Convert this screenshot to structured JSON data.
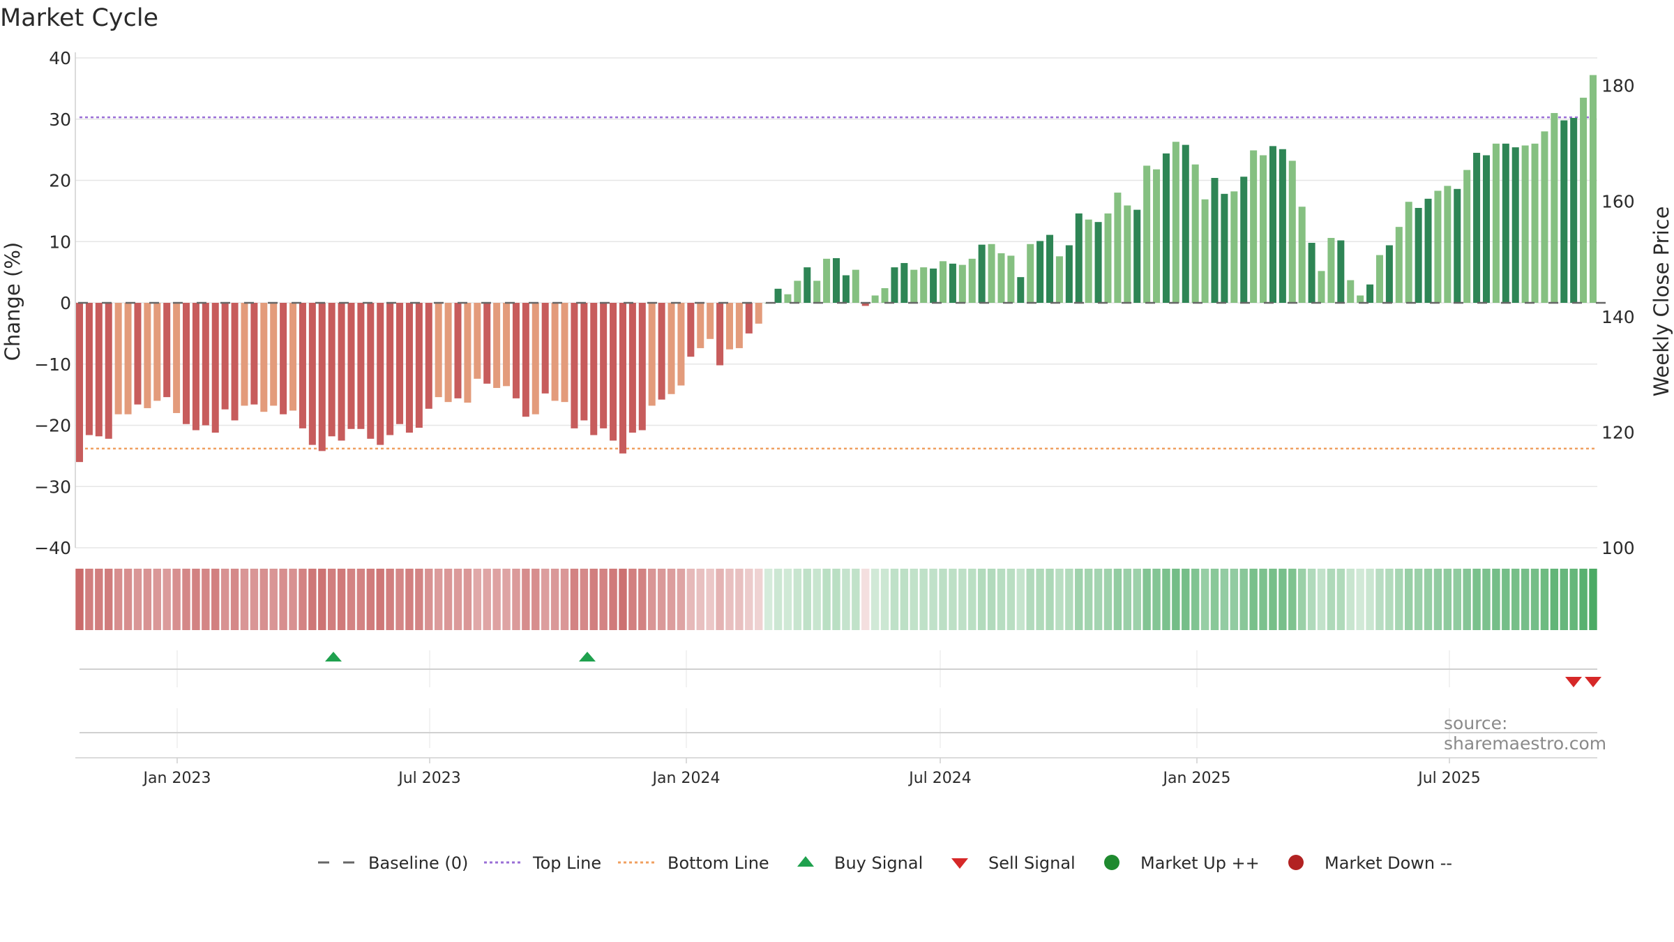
{
  "chart_data": {
    "type": "bar",
    "title": "Market Cycle",
    "ylabel_left": "Change (%)",
    "ylabel_right": "Weekly Close Price",
    "ylim": [
      -40,
      40
    ],
    "y_ticks": [
      -40,
      -30,
      -20,
      -10,
      0,
      10,
      20,
      30,
      40
    ],
    "y_tick_labels": [
      "−40",
      "−30",
      "−20",
      "−10",
      "0",
      "10",
      "20",
      "30",
      "40"
    ],
    "y2_ticks": [
      100,
      120,
      140,
      160,
      180
    ],
    "y2_tick_labels": [
      "100",
      "120",
      "140",
      "160",
      "180"
    ],
    "y2lim": [
      100,
      184.8
    ],
    "x_tick_labels": [
      "Jan 2023",
      "Jul 2023",
      "Jan 2024",
      "Jul 2024",
      "Jan 2025",
      "Jul 2025"
    ],
    "x_tick_dates": [
      "2023-01-01",
      "2023-07-01",
      "2024-01-01",
      "2024-07-01",
      "2025-01-01",
      "2025-07-01"
    ],
    "first_week": "2022-10-23",
    "last_week": "2025-10-12",
    "top_line": 30.3,
    "bottom_line": -23.8,
    "values": [
      -26,
      -21.6,
      -21.8,
      -22.2,
      -18.2,
      -18.2,
      -16.6,
      -17.2,
      -16,
      -15.4,
      -18,
      -19.8,
      -20.8,
      -20,
      -21.2,
      -17.4,
      -19.2,
      -16.8,
      -16.6,
      -17.8,
      -16.8,
      -18.2,
      -17.6,
      -20.5,
      -23.2,
      -24.2,
      -21.8,
      -22.5,
      -20.6,
      -20.6,
      -22.2,
      -23.2,
      -21.6,
      -19.8,
      -21.2,
      -20.4,
      -17.3,
      -15.4,
      -16.2,
      -15.6,
      -16.3,
      -12.4,
      -13.2,
      -13.9,
      -13.6,
      -15.6,
      -18.6,
      -18.2,
      -14.8,
      -16,
      -16.2,
      -20.5,
      -19.2,
      -21.6,
      -20.5,
      -22.5,
      -24.6,
      -21.2,
      -20.8,
      -16.8,
      -15.8,
      -14.9,
      -13.5,
      -8.8,
      -7.4,
      -5.9,
      -10.2,
      -7.6,
      -7.4,
      -5,
      -3.4,
      0,
      2.3,
      1.4,
      3.6,
      5.8,
      3.6,
      7.2,
      7.3,
      4.5,
      5.4,
      -0.5,
      1.2,
      2.4,
      5.8,
      6.5,
      5.4,
      5.8,
      5.6,
      6.8,
      6.4,
      6.2,
      7.2,
      9.5,
      9.6,
      8.1,
      7.7,
      4.2,
      9.6,
      10.1,
      11.1,
      7.6,
      9.4,
      14.6,
      13.6,
      13.2,
      14.6,
      18,
      15.9,
      15.2,
      22.4,
      21.8,
      24.4,
      26.3,
      25.8,
      22.6,
      16.9,
      20.4,
      17.8,
      18.2,
      20.6,
      24.9,
      24.1,
      25.6,
      25.1,
      23.2,
      15.7,
      9.8,
      5.2,
      10.6,
      10.2,
      3.7,
      1.2,
      3,
      7.8,
      9.4,
      12.4,
      16.5,
      15.5,
      17,
      18.3,
      19.1,
      18.6,
      21.7,
      24.5,
      24.1,
      26,
      26,
      25.4,
      25.7,
      26,
      28,
      31,
      29.8,
      30.2,
      33.5,
      37.2
    ],
    "buy_signals": [
      "2023-04-23",
      "2023-10-22"
    ],
    "sell_signals": [
      "2025-09-28",
      "2025-10-12"
    ],
    "legend": [
      "Baseline (0)",
      "Top Line",
      "Bottom Line",
      "Buy Signal",
      "Sell Signal",
      "Market Up ++",
      "Market Down --"
    ],
    "legend_position": "bottom-center",
    "grid": true,
    "colors": {
      "down_dark": "#c75c5c",
      "down_light": "#e39b7b",
      "up_dark": "#2e8555",
      "up_light": "#85c081",
      "top_line": "#9a6fd6",
      "bottom_line": "#f0a060",
      "buy": "#1fa14e",
      "sell": "#d62828",
      "market_up": "#1f8a2f",
      "market_down": "#b22222",
      "baseline": "#666666",
      "grid": "#e6e6e6"
    }
  },
  "source_note": "source: sharemaestro.com"
}
